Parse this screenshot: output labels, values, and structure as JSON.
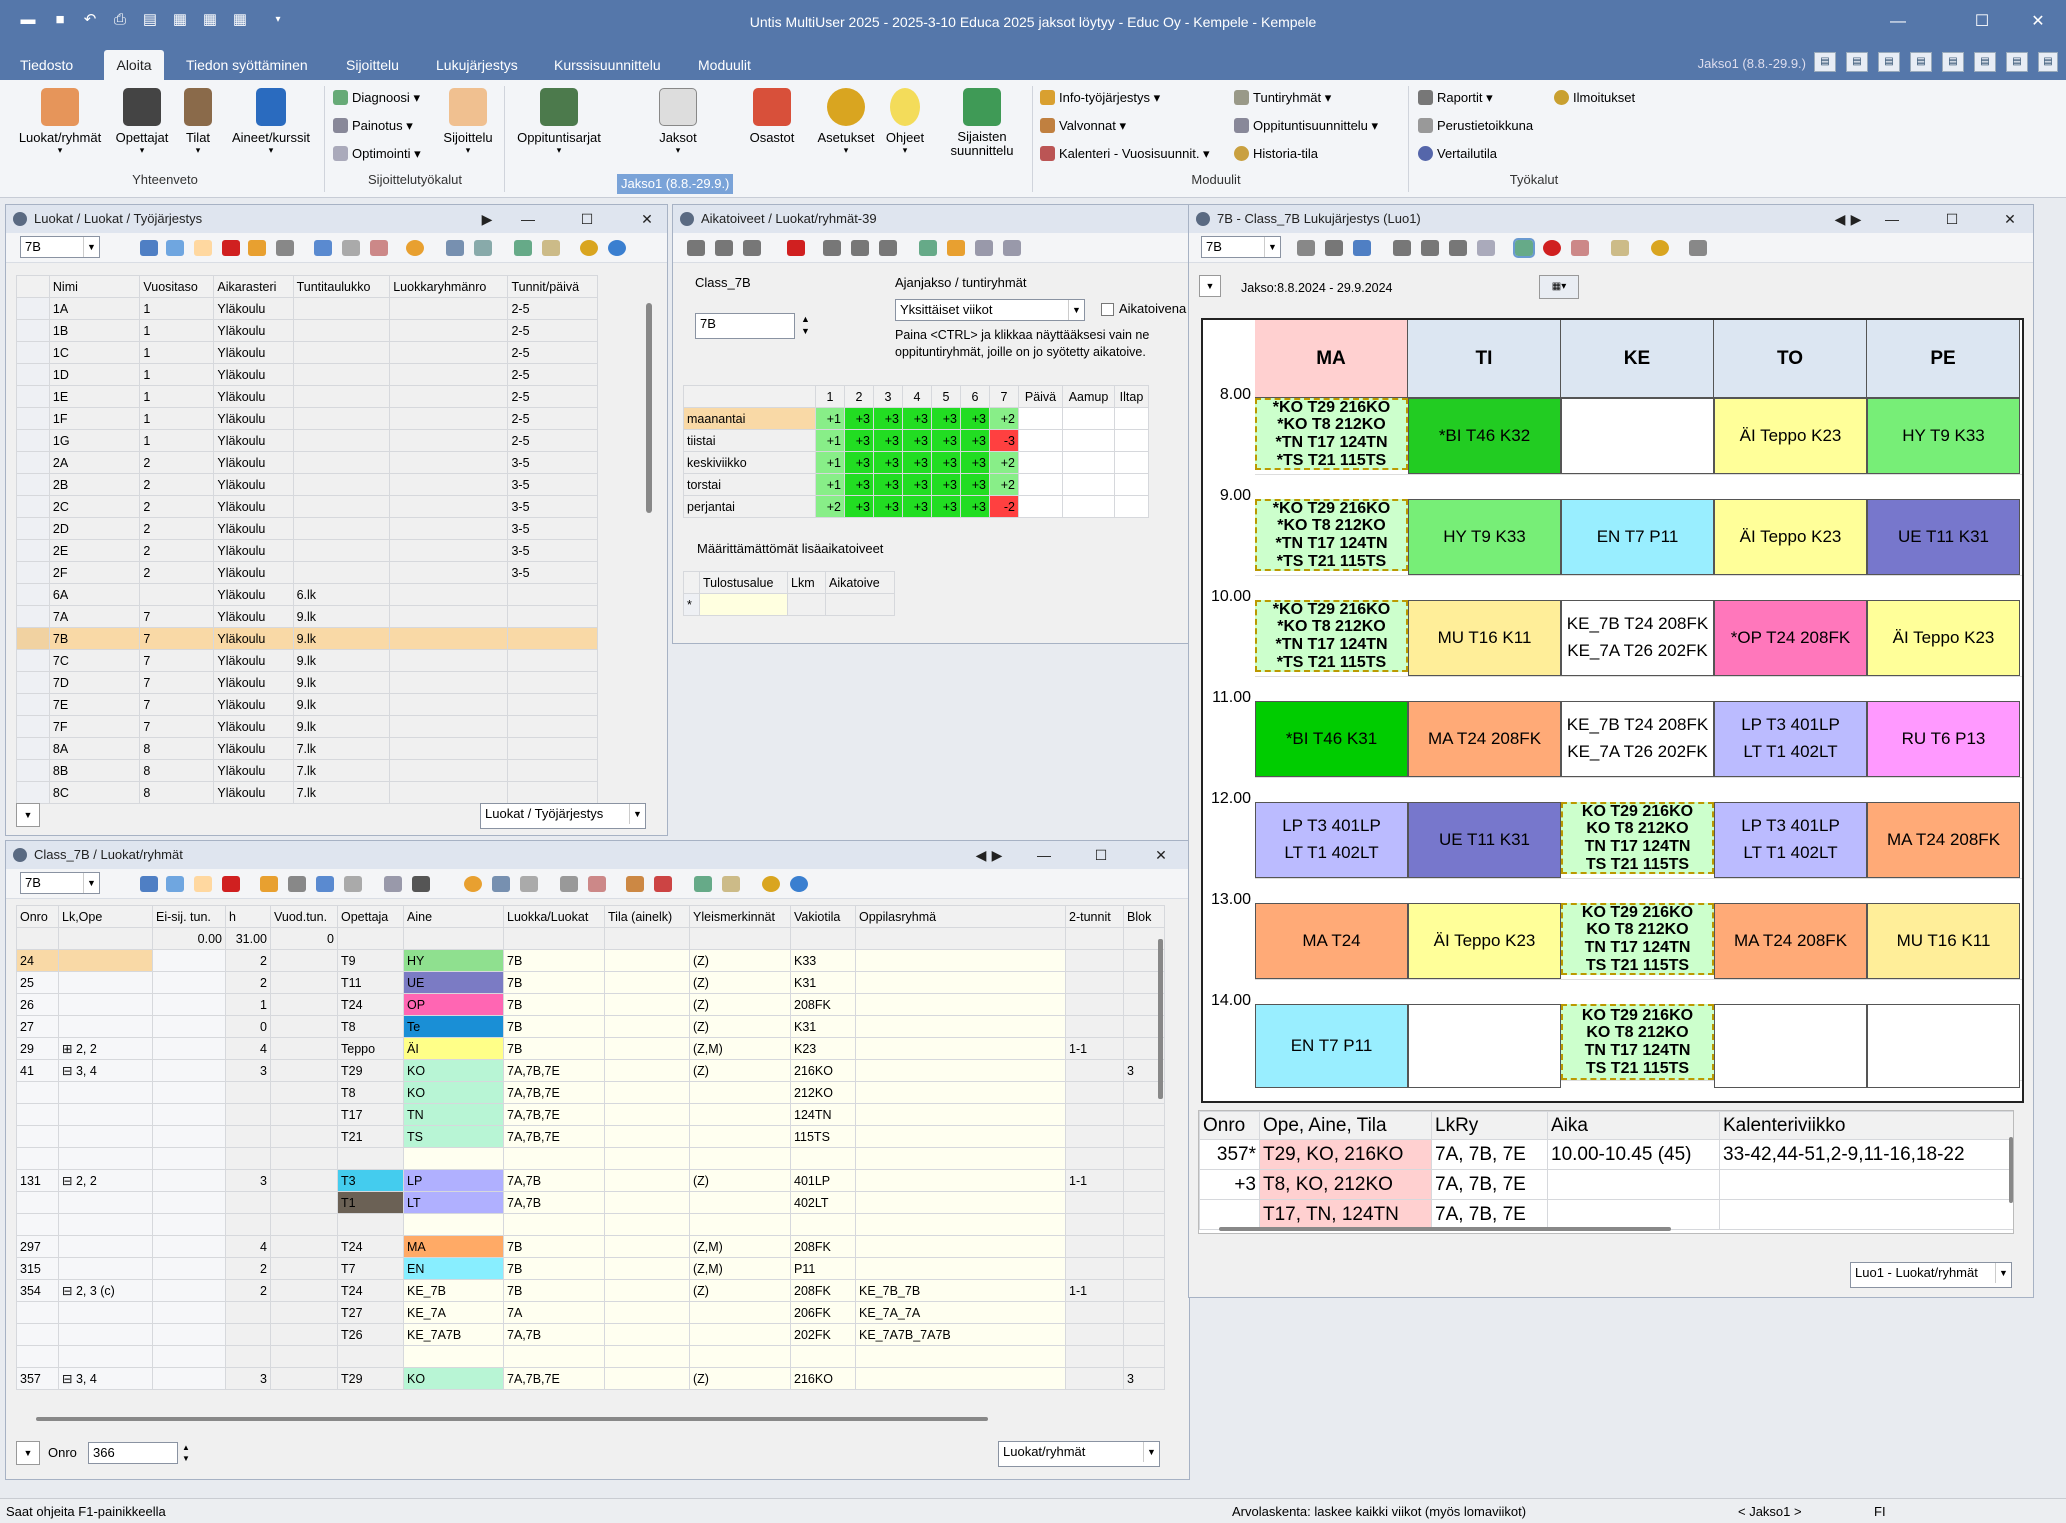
{
  "window": {
    "title": "Untis MultiUser 2025  -  2025-3-10 Educa 2025 jaksot löytyy  -  Educ Oy - Kempele  -  Kempele",
    "min": "—",
    "max": "☐",
    "close": "✕"
  },
  "menu": {
    "tabs": [
      "Tiedosto",
      "Aloita",
      "Tiedon syöttäminen",
      "Sijoittelu",
      "Lukujärjestys",
      "Kurssisuunnittelu",
      "Moduulit"
    ],
    "period": "Jakso1 (8.8.-29.9.)"
  },
  "ribbon": {
    "big": [
      "Luokat/ryhmät",
      "Opettajat",
      "Tilat",
      "Aineet/kurssit",
      "Sijoittelu",
      "Oppituntisarjat",
      "Jaksot",
      "Osastot",
      "Asetukset",
      "Ohjeet",
      "Sijaisten suunnittelu"
    ],
    "small": {
      "diagnoosi": "Diagnoosi",
      "painotus": "Painotus",
      "optimointi": "Optimointi",
      "info": "Info-työjärjestys",
      "valvonnat": "Valvonnat",
      "kalenteri": "Kalenteri - Vuosisuunnit.",
      "tuntiryhmat": "Tuntiryhmät",
      "oppitunti": "Oppituntisuunnittelu",
      "historia": "Historia-tila",
      "raportit": "Raportit",
      "perustieto": "Perustietoikkuna",
      "vertailu": "Vertailutila",
      "ilmoitukset": "Ilmoitukset"
    },
    "groups": {
      "yhteenveto": "Yhteenveto",
      "sijoittelu": "Sijoittelutyökalut",
      "moduulit": "Moduulit",
      "tyokalut": "Työkalut"
    },
    "jakso_sel": "Jakso1 (8.8.-29.9.)"
  },
  "classes_panel": {
    "title": "Luokat / Luokat / Työjärjestys",
    "combo": "7B",
    "footer_combo": "Luokat / Työjärjestys",
    "headers": [
      "Nimi",
      "Vuositaso",
      "Aikarasteri",
      "Tuntitaulukko",
      "Luokkaryhmänro",
      "Tunnit/päivä"
    ],
    "rows": [
      [
        "1A",
        "1",
        "Yläkoulu",
        "",
        "",
        "2-5"
      ],
      [
        "1B",
        "1",
        "Yläkoulu",
        "",
        "",
        "2-5"
      ],
      [
        "1C",
        "1",
        "Yläkoulu",
        "",
        "",
        "2-5"
      ],
      [
        "1D",
        "1",
        "Yläkoulu",
        "",
        "",
        "2-5"
      ],
      [
        "1E",
        "1",
        "Yläkoulu",
        "",
        "",
        "2-5"
      ],
      [
        "1F",
        "1",
        "Yläkoulu",
        "",
        "",
        "2-5"
      ],
      [
        "1G",
        "1",
        "Yläkoulu",
        "",
        "",
        "2-5"
      ],
      [
        "2A",
        "2",
        "Yläkoulu",
        "",
        "",
        "3-5"
      ],
      [
        "2B",
        "2",
        "Yläkoulu",
        "",
        "",
        "3-5"
      ],
      [
        "2C",
        "2",
        "Yläkoulu",
        "",
        "",
        "3-5"
      ],
      [
        "2D",
        "2",
        "Yläkoulu",
        "",
        "",
        "3-5"
      ],
      [
        "2E",
        "2",
        "Yläkoulu",
        "",
        "",
        "3-5"
      ],
      [
        "2F",
        "2",
        "Yläkoulu",
        "",
        "",
        "3-5"
      ],
      [
        "6A",
        "",
        "Yläkoulu",
        "6.lk",
        "",
        ""
      ],
      [
        "7A",
        "7",
        "Yläkoulu",
        "9.lk",
        "",
        ""
      ],
      [
        "7B",
        "7",
        "Yläkoulu",
        "9.lk",
        "",
        ""
      ],
      [
        "7C",
        "7",
        "Yläkoulu",
        "9.lk",
        "",
        ""
      ],
      [
        "7D",
        "7",
        "Yläkoulu",
        "9.lk",
        "",
        ""
      ],
      [
        "7E",
        "7",
        "Yläkoulu",
        "9.lk",
        "",
        ""
      ],
      [
        "7F",
        "7",
        "Yläkoulu",
        "9.lk",
        "",
        ""
      ],
      [
        "8A",
        "8",
        "Yläkoulu",
        "7.lk",
        "",
        ""
      ],
      [
        "8B",
        "8",
        "Yläkoulu",
        "7.lk",
        "",
        ""
      ],
      [
        "8C",
        "8",
        "Yläkoulu",
        "7.lk",
        "",
        ""
      ]
    ]
  },
  "wishes_panel": {
    "title": "Aikatoiveet / Luokat/ryhmät-39",
    "class_label": "Class_7B",
    "class_value": "7B",
    "period_label": "Ajanjakso / tuntiryhmät",
    "period_value": "Yksittäiset viikot",
    "checkbox": "Aikatoivena",
    "hint": "Paina <CTRL> ja klikkaa näyttääksesi vain ne oppituntiryhmät, joille on jo syötetty aikatoive.",
    "cols": [
      "1",
      "2",
      "3",
      "4",
      "5",
      "6",
      "7",
      "Päivä",
      "Aamup",
      "Iltap"
    ],
    "days": [
      {
        "name": "maanantai",
        "vals": [
          "+1",
          "+3",
          "+3",
          "+3",
          "+3",
          "+3",
          "+2"
        ]
      },
      {
        "name": "tiistai",
        "vals": [
          "+1",
          "+3",
          "+3",
          "+3",
          "+3",
          "+3",
          "-3"
        ]
      },
      {
        "name": "keskiviikko",
        "vals": [
          "+1",
          "+3",
          "+3",
          "+3",
          "+3",
          "+3",
          "+2"
        ]
      },
      {
        "name": "torstai",
        "vals": [
          "+1",
          "+3",
          "+3",
          "+3",
          "+3",
          "+3",
          "+2"
        ]
      },
      {
        "name": "perjantai",
        "vals": [
          "+2",
          "+3",
          "+3",
          "+3",
          "+3",
          "+3",
          "-2"
        ]
      }
    ],
    "extra_label": "Määrittämättömät lisäaikatoiveet",
    "extra_headers": [
      "Tulostusalue",
      "Lkm",
      "Aikatoive"
    ],
    "extra_row": "*"
  },
  "lessons_panel": {
    "title": "Class_7B / Luokat/ryhmät",
    "combo": "7B",
    "onro_label": "Onro",
    "onro_value": "366",
    "footer_combo": "Luokat/ryhmät",
    "headers": [
      "Onro",
      "Lk,Ope",
      "Ei-sij. tun.",
      "h",
      "Vuod.tun.",
      "Opettaja",
      "Aine",
      "Luokka/Luokat",
      "Tila (ainelk)",
      "Yleismerkinnät",
      "Vakiotila",
      "Oppilasryhmä",
      "2-tunnit",
      "Blok"
    ],
    "sum": [
      "",
      "",
      "0.00",
      "31.00",
      "0",
      "",
      "",
      "",
      "",
      "",
      "",
      "",
      "",
      ""
    ],
    "rows": [
      {
        "c": [
          "24",
          "",
          "",
          "2",
          "",
          "T9",
          "HY",
          "7B",
          "",
          "(Z)",
          "K33",
          "",
          "",
          ""
        ],
        "ac": "#8fe08f",
        "sel": true
      },
      {
        "c": [
          "25",
          "",
          "",
          "2",
          "",
          "T11",
          "UE",
          "7B",
          "",
          "(Z)",
          "K31",
          "",
          "",
          ""
        ],
        "ac": "#7b7bc4"
      },
      {
        "c": [
          "26",
          "",
          "",
          "1",
          "",
          "T24",
          "OP",
          "7B",
          "",
          "(Z)",
          "208FK",
          "",
          "",
          ""
        ],
        "ac": "#ff66b3"
      },
      {
        "c": [
          "27",
          "",
          "",
          "0",
          "",
          "T8",
          "Te",
          "7B",
          "",
          "(Z)",
          "K31",
          "",
          "",
          ""
        ],
        "ac": "#1a8fd6"
      },
      {
        "c": [
          "29",
          "⊞ 2, 2",
          "",
          "4",
          "",
          "Teppo",
          "ÄI",
          "7B",
          "",
          "(Z,M)",
          "K23",
          "",
          "1-1",
          ""
        ],
        "ac": "#ffff88"
      },
      {
        "c": [
          "41",
          "⊟ 3, 4",
          "",
          "3",
          "",
          "T29",
          "KO",
          "7A,7B,7E",
          "",
          "(Z)",
          "216KO",
          "",
          "",
          "3"
        ],
        "ac": "#b8f5d5"
      },
      {
        "c": [
          "",
          "",
          "",
          "",
          "",
          "T8",
          "KO",
          "7A,7B,7E",
          "",
          "",
          "212KO",
          "",
          "",
          ""
        ],
        "ac": "#b8f5d5"
      },
      {
        "c": [
          "",
          "",
          "",
          "",
          "",
          "T17",
          "TN",
          "7A,7B,7E",
          "",
          "",
          "124TN",
          "",
          "",
          ""
        ],
        "ac": "#b8f5d5"
      },
      {
        "c": [
          "",
          "",
          "",
          "",
          "",
          "T21",
          "TS",
          "7A,7B,7E",
          "",
          "",
          "115TS",
          "",
          "",
          ""
        ],
        "ac": "#b8f5d5"
      },
      {
        "c": [
          "",
          "",
          "",
          "",
          "",
          "",
          "",
          "",
          "",
          "",
          "",
          "",
          "",
          ""
        ]
      },
      {
        "c": [
          "131",
          "⊟ 2, 2",
          "",
          "3",
          "",
          "T3",
          "LP",
          "7A,7B",
          "",
          "(Z)",
          "401LP",
          "",
          "1-1",
          ""
        ],
        "ac": "#b0b0ff",
        "tc": "#44ccee"
      },
      {
        "c": [
          "",
          "",
          "",
          "",
          "",
          "T1",
          "LT",
          "7A,7B",
          "",
          "",
          "402LT",
          "",
          "",
          ""
        ],
        "ac": "#b0b0ff",
        "tc": "#6b6155"
      },
      {
        "c": [
          "",
          "",
          "",
          "",
          "",
          "",
          "",
          "",
          "",
          "",
          "",
          "",
          "",
          ""
        ]
      },
      {
        "c": [
          "297",
          "",
          "",
          "4",
          "",
          "T24",
          "MA",
          "7B",
          "",
          "(Z,M)",
          "208FK",
          "",
          "",
          ""
        ],
        "ac": "#ffaa66"
      },
      {
        "c": [
          "315",
          "",
          "",
          "2",
          "",
          "T7",
          "EN",
          "7B",
          "",
          "(Z,M)",
          "P11",
          "",
          "",
          ""
        ],
        "ac": "#88eeff"
      },
      {
        "c": [
          "354",
          "⊟ 2, 3 (c)",
          "",
          "2",
          "",
          "T24",
          "KE_7B",
          "7B",
          "",
          "(Z)",
          "208FK",
          "KE_7B_7B",
          "1-1",
          ""
        ]
      },
      {
        "c": [
          "",
          "",
          "",
          "",
          "",
          "T27",
          "KE_7A",
          "7A",
          "",
          "",
          "206FK",
          "KE_7A_7A",
          "",
          ""
        ]
      },
      {
        "c": [
          "",
          "",
          "",
          "",
          "",
          "T26",
          "KE_7A7B",
          "7A,7B",
          "",
          "",
          "202FK",
          "KE_7A7B_7A7B",
          "",
          ""
        ]
      },
      {
        "c": [
          "",
          "",
          "",
          "",
          "",
          "",
          "",
          "",
          "",
          "",
          "",
          "",
          "",
          ""
        ]
      },
      {
        "c": [
          "357",
          "⊟ 3, 4",
          "",
          "3",
          "",
          "T29",
          "KO",
          "7A,7B,7E",
          "",
          "(Z)",
          "216KO",
          "",
          "",
          "3"
        ],
        "ac": "#b8f5d5"
      }
    ]
  },
  "timetable": {
    "title": "7B - Class_7B Lukujärjestys  (Luo1)",
    "combo": "7B",
    "period": "Jakso:8.8.2024 - 29.9.2024",
    "days": [
      "MA",
      "TI",
      "KE",
      "TO",
      "PE"
    ],
    "hours": [
      "8.00",
      "9.00",
      "10.00",
      "11.00",
      "12.00",
      "13.00",
      "14.00"
    ],
    "ko4": [
      "*KO T29 216KO",
      "*KO T8 212KO",
      "*TN T17 124TN",
      "*TS T21 115TS"
    ],
    "ko4b": [
      "KO T29 216KO",
      "KO T8 212KO",
      "TN T17 124TN",
      "TS T21 115TS"
    ],
    "cells": {
      "bi1": "*BI T46 K32",
      "ai1": "ÄI Teppo K23",
      "hy1": "HY T9 K33",
      "hy2": "HY T9 K33",
      "en2": "EN T7 P11",
      "ai2": "ÄI Teppo K23",
      "ue2": "UE T11 K31",
      "mu3": "MU T16 K11",
      "ke3a": "KE_7B T24 208FK",
      "ke3b": "KE_7A T26 202FK",
      "op3": "*OP T24 208FK",
      "ai3": "ÄI Teppo K23",
      "bi4": "*BI T46 K31",
      "ma4": "MA T24 208FK",
      "ke4a": "KE_7B T24 208FK",
      "ke4b": "KE_7A T26 202FK",
      "lp4": "LP T3 401LP",
      "lt4": "LT T1 402LT",
      "ru4": "RU T6 P13",
      "lp5": "LP T3 401LP",
      "lt5": "LT T1 402LT",
      "ue5": "UE T11 K31",
      "ma5": "MA T24 208FK",
      "ma6": "MA T24",
      "ai6": "ÄI Teppo K23",
      "ma6b": "MA T24 208FK",
      "mu6": "MU T16 K11",
      "en7": "EN T7 P11"
    },
    "detail_headers": [
      "Onro",
      "Ope, Aine, Tila",
      "LkRy",
      "Aika",
      "Kalenteriviikko"
    ],
    "detail_rows": [
      [
        "357*",
        "T29, KO, 216KO",
        "7A, 7B, 7E",
        "10.00-10.45 (45)",
        "33-42,44-51,2-9,11-16,18-22"
      ],
      [
        "+3",
        "T8, KO, 212KO",
        "7A, 7B, 7E",
        "",
        ""
      ],
      [
        "",
        "T17, TN, 124TN",
        "7A, 7B, 7E",
        "",
        ""
      ]
    ],
    "footer_combo": "Luo1 - Luokat/ryhmät"
  },
  "status": {
    "left": "Saat ohjeita F1-painikkeella",
    "mid": "Arvolaskenta: laskee kaikki viikot (myös lomaviikot)",
    "jakso": "< Jakso1 >",
    "lang": "FI"
  }
}
